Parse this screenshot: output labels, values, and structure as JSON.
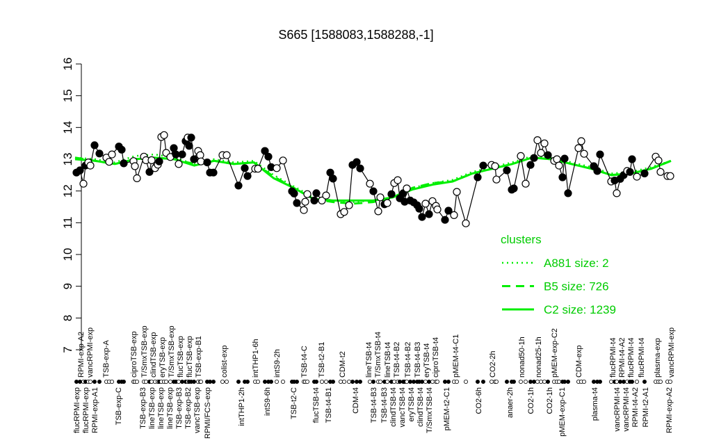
{
  "chart_data": {
    "type": "line",
    "title": "S665 [1588083,1588288,-1]",
    "xlabel": "",
    "ylabel": "",
    "ylim": [
      7,
      16
    ],
    "y_ticks": [
      "7",
      "8",
      "9",
      "10",
      "11",
      "12",
      "13",
      "14",
      "15",
      "16"
    ],
    "grid": false,
    "legend_placement": "bottom-right",
    "colors": {
      "points_line": "#000000",
      "clusters": "#00ee00"
    },
    "x_tick_labels_top": [
      "RPMI-exp-A2",
      "vancRPMI-exp",
      "TSB-exp-A",
      "ciproTSB-exp",
      "T/SmxTSB-exp",
      "clindTSB-exp",
      "eryTSB-exp",
      "T/SmxTSB-exp",
      "flucTSB-exp",
      "flucTSB-exp",
      "TSB-exp-B1",
      "colist-exp",
      "intTHP1-6h",
      "intS9-2h",
      "TSB-t4-C",
      "TSB-t2-B1",
      "CDM-t2",
      "lineTSB-t4",
      "T/SmxTSB-t4",
      "lineTSB-t4",
      "TSB-t4-B2",
      "TSB-t4-B2",
      "TSB-t4-B3",
      "eryTSB-t4",
      "ciproTSB-t4",
      "pMEM-t4-C1",
      "CO2-2h",
      "nonad50-1h",
      "nonad25-1h",
      "pMEM-exp-C2",
      "CDM-exp",
      "flucRPMI-t4",
      "RPMI-t4-A2",
      "flucRPMI-t4",
      "flucRPMI-t4",
      "plasma-exp",
      "vancRPMI-exp"
    ],
    "x_tick_labels_bottom": [
      "flucRPMI-exp",
      "flucRPMI-exp",
      "RPMI-exp-A1",
      "TSB-exp-C",
      "TSB-exp-B3",
      "lineTSB-exp",
      "lineTSB-exp",
      "lineTSB-exp",
      "TSB-exp-B3",
      "TSB-exp-B2",
      "vancTSB-exp",
      "RPMI/FCS-exp",
      "intTHP1-2h",
      "intS9-6h",
      "TSB-t2-C",
      "flucTSB-t4",
      "TSB-t4-B1",
      "CDM-t4",
      "TSB-t4-B3",
      "TSB-t4-B3",
      "clindTSB-t4",
      "vancTSB-t4",
      "eryTSB-t4",
      "clindTSB-t4",
      "T/SmxTSB-t4",
      "pMEM-t2-C1",
      "CO2-6h",
      "anaer-2h",
      "CO2-1h",
      "CO2-1h",
      "pMEM-exp-C1",
      "plasma-t4",
      "vancRPMI-t4",
      "vancRPMI-t4",
      "RPMI-t4-A2",
      "RPMI-t2-A1",
      "RPMI-exp-A2"
    ],
    "points": [
      [
        12.58,
        1
      ],
      [
        12.65,
        1
      ],
      [
        12.23,
        0
      ],
      [
        12.8,
        1
      ],
      [
        12.9,
        0
      ],
      [
        12.8,
        0
      ],
      [
        13.44,
        1
      ],
      [
        13.18,
        1
      ],
      [
        13.05,
        0
      ],
      [
        12.92,
        0
      ],
      [
        13.15,
        0
      ],
      [
        13.4,
        1
      ],
      [
        13.3,
        1
      ],
      [
        12.87,
        1
      ],
      [
        12.94,
        0
      ],
      [
        12.78,
        0
      ],
      [
        12.4,
        0
      ],
      [
        13.08,
        0
      ],
      [
        12.97,
        0
      ],
      [
        12.6,
        1
      ],
      [
        12.97,
        0
      ],
      [
        12.72,
        0
      ],
      [
        12.83,
        0
      ],
      [
        12.93,
        1
      ],
      [
        13.7,
        0
      ],
      [
        13.76,
        0
      ],
      [
        13.2,
        0
      ],
      [
        13.07,
        0
      ],
      [
        13.35,
        1
      ],
      [
        13.15,
        1
      ],
      [
        12.85,
        0
      ],
      [
        13.15,
        1
      ],
      [
        13.57,
        1
      ],
      [
        13.68,
        0
      ],
      [
        13.42,
        1
      ],
      [
        13.68,
        1
      ],
      [
        13.0,
        1
      ],
      [
        13.26,
        0
      ],
      [
        13.13,
        0
      ],
      [
        12.93,
        0
      ],
      [
        12.9,
        1
      ],
      [
        12.58,
        1
      ],
      [
        12.58,
        1
      ],
      [
        13.13,
        0
      ],
      [
        13.13,
        0
      ],
      [
        12.17,
        1
      ],
      [
        12.72,
        1
      ],
      [
        12.47,
        1
      ],
      [
        12.7,
        0
      ],
      [
        12.7,
        0
      ],
      [
        13.26,
        1
      ],
      [
        13.08,
        1
      ],
      [
        12.75,
        1
      ],
      [
        12.72,
        0
      ],
      [
        12.96,
        0
      ],
      [
        11.99,
        1
      ],
      [
        11.92,
        1
      ],
      [
        11.62,
        1
      ],
      [
        11.4,
        0
      ],
      [
        11.66,
        0
      ],
      [
        11.9,
        0
      ],
      [
        11.7,
        1
      ],
      [
        11.93,
        1
      ],
      [
        11.7,
        0
      ],
      [
        11.86,
        0
      ],
      [
        12.58,
        1
      ],
      [
        12.39,
        1
      ],
      [
        11.27,
        0
      ],
      [
        11.34,
        0
      ],
      [
        11.55,
        0
      ],
      [
        12.82,
        1
      ],
      [
        12.91,
        1
      ],
      [
        12.71,
        1
      ],
      [
        12.23,
        0
      ],
      [
        11.99,
        1
      ],
      [
        11.36,
        0
      ],
      [
        11.8,
        0
      ],
      [
        11.58,
        1
      ],
      [
        11.62,
        0
      ],
      [
        11.9,
        1
      ],
      [
        12.25,
        0
      ],
      [
        12.34,
        0
      ],
      [
        11.77,
        1
      ],
      [
        11.93,
        1
      ],
      [
        11.66,
        1
      ],
      [
        12.08,
        0
      ],
      [
        11.7,
        1
      ],
      [
        11.64,
        1
      ],
      [
        11.55,
        1
      ],
      [
        11.44,
        1
      ],
      [
        11.18,
        1
      ],
      [
        11.6,
        0
      ],
      [
        11.27,
        1
      ],
      [
        11.68,
        0
      ],
      [
        11.53,
        0
      ],
      [
        11.42,
        0
      ],
      [
        11.09,
        1
      ],
      [
        11.38,
        1
      ],
      [
        11.24,
        0
      ],
      [
        11.97,
        0
      ],
      [
        10.98,
        0
      ],
      [
        12.43,
        1
      ],
      [
        12.8,
        1
      ],
      [
        12.82,
        0
      ],
      [
        12.78,
        0
      ],
      [
        12.36,
        0
      ],
      [
        12.65,
        1
      ],
      [
        12.04,
        1
      ],
      [
        12.08,
        1
      ],
      [
        13.1,
        0
      ],
      [
        12.23,
        0
      ],
      [
        12.82,
        1
      ],
      [
        13.04,
        1
      ],
      [
        13.6,
        0
      ],
      [
        13.2,
        0
      ],
      [
        13.5,
        0
      ],
      [
        13.13,
        1
      ],
      [
        12.95,
        0
      ],
      [
        13.0,
        0
      ],
      [
        12.8,
        0
      ],
      [
        12.43,
        1
      ],
      [
        13.02,
        1
      ],
      [
        11.93,
        1
      ],
      [
        13.35,
        0
      ],
      [
        13.57,
        0
      ],
      [
        13.17,
        0
      ],
      [
        12.78,
        1
      ],
      [
        12.63,
        1
      ],
      [
        13.15,
        1
      ],
      [
        12.3,
        0
      ],
      [
        12.33,
        1
      ],
      [
        11.93,
        0
      ],
      [
        12.38,
        1
      ],
      [
        12.5,
        1
      ],
      [
        12.63,
        0
      ],
      [
        12.6,
        1
      ],
      [
        13.0,
        1
      ],
      [
        12.45,
        0
      ],
      [
        12.55,
        1
      ],
      [
        13.08,
        0
      ],
      [
        12.96,
        0
      ],
      [
        12.6,
        0
      ],
      [
        12.47,
        0
      ],
      [
        12.47,
        0
      ]
    ],
    "clusters": [
      {
        "name": "A881 size: 2",
        "style": "dotted",
        "values": [
          13.05,
          13.0,
          12.9,
          13.1,
          13.15,
          13.05,
          12.85,
          13.0,
          12.9,
          12.95,
          12.5,
          12.15,
          11.8,
          11.7,
          11.65,
          11.7,
          11.8,
          12.1,
          12.25,
          12.35,
          12.6,
          12.75,
          12.9,
          13.1,
          13.05,
          12.9,
          12.75,
          12.55,
          12.6,
          12.75,
          12.95
        ]
      },
      {
        "name": "B5 size: 726",
        "style": "dashed",
        "values": [
          13.05,
          12.95,
          12.85,
          13.0,
          13.05,
          13.0,
          12.85,
          12.95,
          12.85,
          12.9,
          12.45,
          12.1,
          11.75,
          11.65,
          11.6,
          11.65,
          11.8,
          12.1,
          12.25,
          12.3,
          12.55,
          12.7,
          12.85,
          13.05,
          13.0,
          12.85,
          12.7,
          12.5,
          12.55,
          12.7,
          12.95
        ]
      },
      {
        "name": "C2 size: 1239",
        "style": "solid",
        "values": [
          13.0,
          12.95,
          12.85,
          13.0,
          13.05,
          13.0,
          12.8,
          12.95,
          12.85,
          12.9,
          12.4,
          12.1,
          11.75,
          11.7,
          11.7,
          11.7,
          11.8,
          12.05,
          12.2,
          12.3,
          12.55,
          12.7,
          12.85,
          13.05,
          13.0,
          12.85,
          12.7,
          12.5,
          12.55,
          12.7,
          12.95
        ]
      }
    ],
    "legend_title": "clusters"
  }
}
